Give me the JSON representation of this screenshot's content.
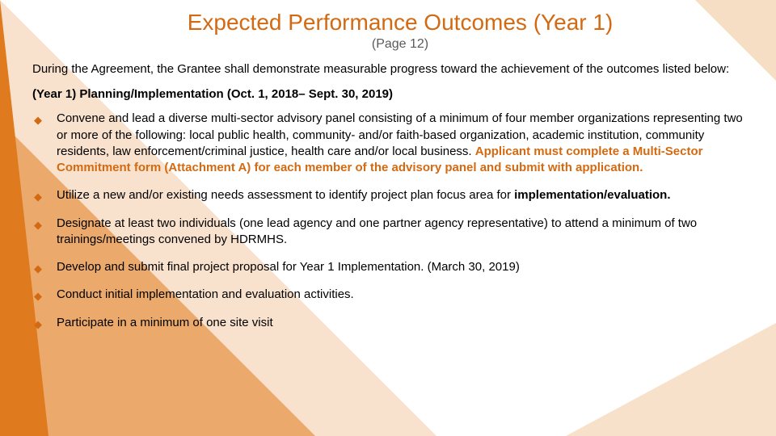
{
  "colors": {
    "accent": "#d36a12",
    "text": "#000000",
    "subtitle": "#5a5a5a",
    "background": "#ffffff"
  },
  "typography": {
    "family": "Trebuchet MS",
    "title_size_pt": 21,
    "body_size_pt": 11,
    "line_height": 1.35
  },
  "slide": {
    "title": "Expected Performance Outcomes (Year 1)",
    "subtitle": "(Page 12)",
    "intro": "During the Agreement, the Grantee shall demonstrate measurable progress toward the achievement of the outcomes listed below:",
    "section_heading": "(Year 1) Planning/Implementation (Oct. 1, 2018– Sept. 30, 2019)",
    "bullets": [
      {
        "plain": "Convene and lead a diverse multi-sector advisory panel consisting of a minimum of four member organizations representing two or more of the following: local public health, community- and/or faith-based organization, academic institution, community residents, law enforcement/criminal justice, health care and/or local business. ",
        "highlight": "Applicant must complete a Multi-Sector Commitment form (Attachment A) for each member of the advisory panel and submit with application."
      },
      {
        "plain": "Utilize a new and/or existing needs assessment to identify project plan focus area for ",
        "bold_tail": "implementation/evaluation."
      },
      {
        "plain": "Designate at least two individuals (one lead agency and one partner agency representative) to attend a minimum of two trainings/meetings convened by HDRMHS."
      },
      {
        "plain": "Develop and submit final project proposal for Year 1 Implementation. (March 30, 2019)"
      },
      {
        "plain": "Conduct initial implementation and evaluation activities."
      },
      {
        "plain": "Participate in a minimum of one site visit"
      }
    ]
  }
}
